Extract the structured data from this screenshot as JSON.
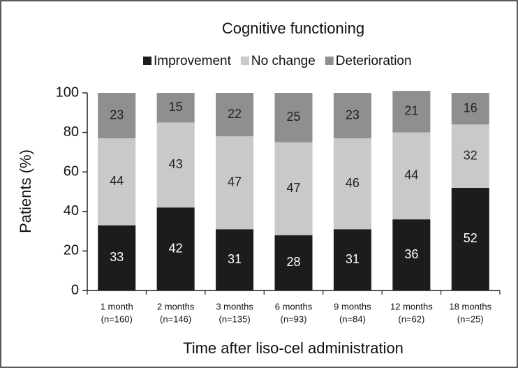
{
  "chart_data": {
    "type": "stacked_bar",
    "title": "Cognitive functioning",
    "xlabel": "Time after liso-cel administration",
    "ylabel": "Patients (%)",
    "categories": [
      "1 month",
      "2 months",
      "3 months",
      "6 months",
      "9 months",
      "12 months",
      "18 months"
    ],
    "subcategories": [
      "(n=160)",
      "(n=146)",
      "(n=135)",
      "(n=93)",
      "(n=84)",
      "(n=62)",
      "(n=25)"
    ],
    "series": [
      {
        "name": "Improvement",
        "color": "#1c1c1c",
        "label_color": "#ffffff",
        "values": [
          33,
          42,
          31,
          28,
          31,
          36,
          52
        ]
      },
      {
        "name": "No change",
        "color": "#c9c9c9",
        "label_color": "#222222",
        "values": [
          44,
          43,
          47,
          47,
          46,
          44,
          32
        ]
      },
      {
        "name": "Deterioration",
        "color": "#8f8f8f",
        "label_color": "#222222",
        "values": [
          23,
          15,
          22,
          25,
          23,
          21,
          16
        ]
      }
    ],
    "ylim": [
      0,
      100
    ],
    "yticks": [
      0,
      20,
      40,
      60,
      80,
      100
    ],
    "legend": "top"
  }
}
